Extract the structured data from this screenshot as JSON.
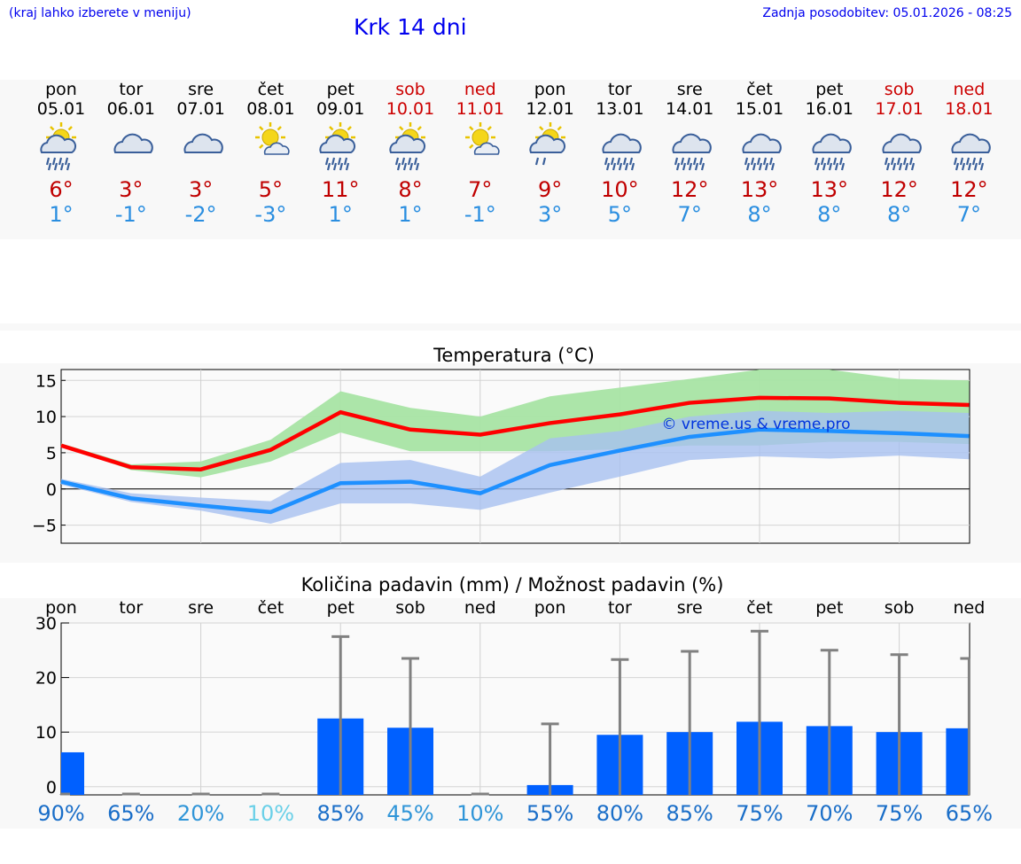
{
  "header": {
    "menu_hint": "(kraj lahko izberete v meniju)",
    "title": "Krk 14 dni",
    "last_update": "Zadnja posodobitev: 05.01.2026 - 08:25"
  },
  "days": [
    {
      "name": "pon",
      "date": "05.01",
      "weekend": false,
      "icon": "sun-cloud-rain-icon",
      "tmax": "6°",
      "tmin": "1°"
    },
    {
      "name": "tor",
      "date": "06.01",
      "weekend": false,
      "icon": "cloudy-icon",
      "tmax": "3°",
      "tmin": "-1°"
    },
    {
      "name": "sre",
      "date": "07.01",
      "weekend": false,
      "icon": "cloudy-icon",
      "tmax": "3°",
      "tmin": "-2°"
    },
    {
      "name": "čet",
      "date": "08.01",
      "weekend": false,
      "icon": "sun-small-cloud-icon",
      "tmax": "5°",
      "tmin": "-3°"
    },
    {
      "name": "pet",
      "date": "09.01",
      "weekend": false,
      "icon": "sun-cloud-rain-icon",
      "tmax": "11°",
      "tmin": "1°"
    },
    {
      "name": "sob",
      "date": "10.01",
      "weekend": true,
      "icon": "sun-cloud-rain-icon",
      "tmax": "8°",
      "tmin": "1°"
    },
    {
      "name": "ned",
      "date": "11.01",
      "weekend": true,
      "icon": "sun-small-cloud-icon",
      "tmax": "7°",
      "tmin": "-1°"
    },
    {
      "name": "pon",
      "date": "12.01",
      "weekend": false,
      "icon": "sun-cloud-light-rain-icon",
      "tmax": "9°",
      "tmin": "3°"
    },
    {
      "name": "tor",
      "date": "13.01",
      "weekend": false,
      "icon": "cloud-rain-icon",
      "tmax": "10°",
      "tmin": "5°"
    },
    {
      "name": "sre",
      "date": "14.01",
      "weekend": false,
      "icon": "cloud-rain-icon",
      "tmax": "12°",
      "tmin": "7°"
    },
    {
      "name": "čet",
      "date": "15.01",
      "weekend": false,
      "icon": "cloud-rain-icon",
      "tmax": "13°",
      "tmin": "8°"
    },
    {
      "name": "pet",
      "date": "16.01",
      "weekend": false,
      "icon": "cloud-rain-icon",
      "tmax": "13°",
      "tmin": "8°"
    },
    {
      "name": "sob",
      "date": "17.01",
      "weekend": true,
      "icon": "cloud-rain-icon",
      "tmax": "12°",
      "tmin": "8°"
    },
    {
      "name": "ned",
      "date": "18.01",
      "weekend": true,
      "icon": "cloud-rain-icon",
      "tmax": "12°",
      "tmin": "7°"
    }
  ],
  "colors": {
    "weekend": "#cc0000",
    "tmax": "#c00000",
    "tmin": "#2a8ee0",
    "max_line": "#ff0000",
    "min_line": "#1e90ff",
    "max_band": "#a8e4a4",
    "min_band": "#a8c0f0",
    "precip_bar": "#0060ff",
    "error_bar": "#808080"
  },
  "chart_data": [
    {
      "type": "line",
      "title": "Temperatura (°C)",
      "watermark": "© vreme.us & vreme.pro",
      "x": [
        0,
        1,
        2,
        3,
        4,
        5,
        6,
        7,
        8,
        9,
        10,
        11,
        12,
        13
      ],
      "ylim": [
        -7.5,
        16.5
      ],
      "yticks": [
        -5,
        0,
        5,
        10,
        15
      ],
      "grid": true,
      "series": [
        {
          "name": "max",
          "values": [
            6.0,
            3.0,
            2.7,
            5.4,
            10.6,
            8.2,
            7.5,
            9.1,
            10.3,
            11.9,
            12.6,
            12.5,
            11.9,
            11.6
          ],
          "band_low": [
            6.0,
            2.6,
            1.6,
            3.8,
            7.8,
            5.2,
            5.2,
            5.2,
            5.5,
            6.0,
            6.0,
            6.5,
            6.5,
            6.2
          ],
          "band_high": [
            6.3,
            3.4,
            3.8,
            6.8,
            13.5,
            11.2,
            10.0,
            12.8,
            14.0,
            15.2,
            16.5,
            16.5,
            15.2,
            15.0
          ]
        },
        {
          "name": "min",
          "values": [
            1.0,
            -1.3,
            -2.3,
            -3.2,
            0.8,
            1.0,
            -0.6,
            3.3,
            5.3,
            7.2,
            8.2,
            8.0,
            7.7,
            7.3
          ],
          "band_low": [
            0.6,
            -1.8,
            -3.0,
            -4.8,
            -2.0,
            -2.0,
            -2.9,
            -0.5,
            1.7,
            4.0,
            4.5,
            4.2,
            4.6,
            4.1
          ],
          "band_high": [
            1.4,
            -0.6,
            -1.2,
            -1.7,
            3.6,
            4.0,
            1.7,
            7.0,
            8.0,
            10.0,
            10.8,
            10.5,
            10.8,
            10.5
          ]
        }
      ]
    },
    {
      "type": "bar",
      "title": "Količina padavin (mm) / Možnost padavin (%)",
      "categories": [
        "pon",
        "tor",
        "sre",
        "čet",
        "pet",
        "sob",
        "ned",
        "pon",
        "tor",
        "sre",
        "čet",
        "pet",
        "sob",
        "ned"
      ],
      "values": [
        6.3,
        0,
        0,
        0,
        12.5,
        10.8,
        0,
        0.3,
        9.5,
        10.0,
        11.9,
        11.1,
        10.0,
        10.7
      ],
      "error_high": [
        0,
        0,
        0,
        0,
        27.5,
        23.5,
        0,
        11.5,
        23.3,
        24.8,
        28.5,
        25.0,
        24.2,
        23.5
      ],
      "probability": [
        "90%",
        "65%",
        "20%",
        "10%",
        "85%",
        "45%",
        "10%",
        "55%",
        "80%",
        "85%",
        "75%",
        "70%",
        "75%",
        "65%"
      ],
      "probability_colors": [
        "#1a6ec8",
        "#1a6ec8",
        "#2f95d8",
        "#6ad0e8",
        "#1a6ec8",
        "#2f95d8",
        "#2f95d8",
        "#1a6ec8",
        "#1a6ec8",
        "#1a6ec8",
        "#1a6ec8",
        "#1a6ec8",
        "#1a6ec8",
        "#1a6ec8"
      ],
      "ylim": [
        -1.5,
        30
      ],
      "yticks": [
        0,
        10,
        20,
        30
      ],
      "grid": true
    }
  ]
}
